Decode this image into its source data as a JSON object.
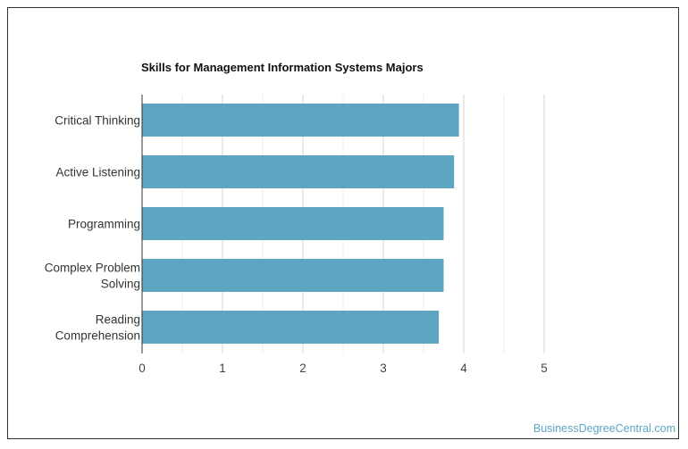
{
  "chart_data": {
    "type": "bar",
    "orientation": "horizontal",
    "title": "Skills for Management Information Systems Majors",
    "categories": [
      [
        "Critical Thinking"
      ],
      [
        "Active Listening"
      ],
      [
        "Programming"
      ],
      [
        "Complex Problem",
        "Solving"
      ],
      [
        "Reading",
        "Comprehension"
      ]
    ],
    "values": [
      3.94,
      3.88,
      3.75,
      3.75,
      3.69
    ],
    "xlim": [
      0,
      5
    ],
    "xticks": [
      "0",
      "1",
      "2",
      "3",
      "4",
      "5"
    ],
    "grid": true,
    "bar_color": "#5ea5c2"
  },
  "watermark": "BusinessDegreeCentral.com"
}
